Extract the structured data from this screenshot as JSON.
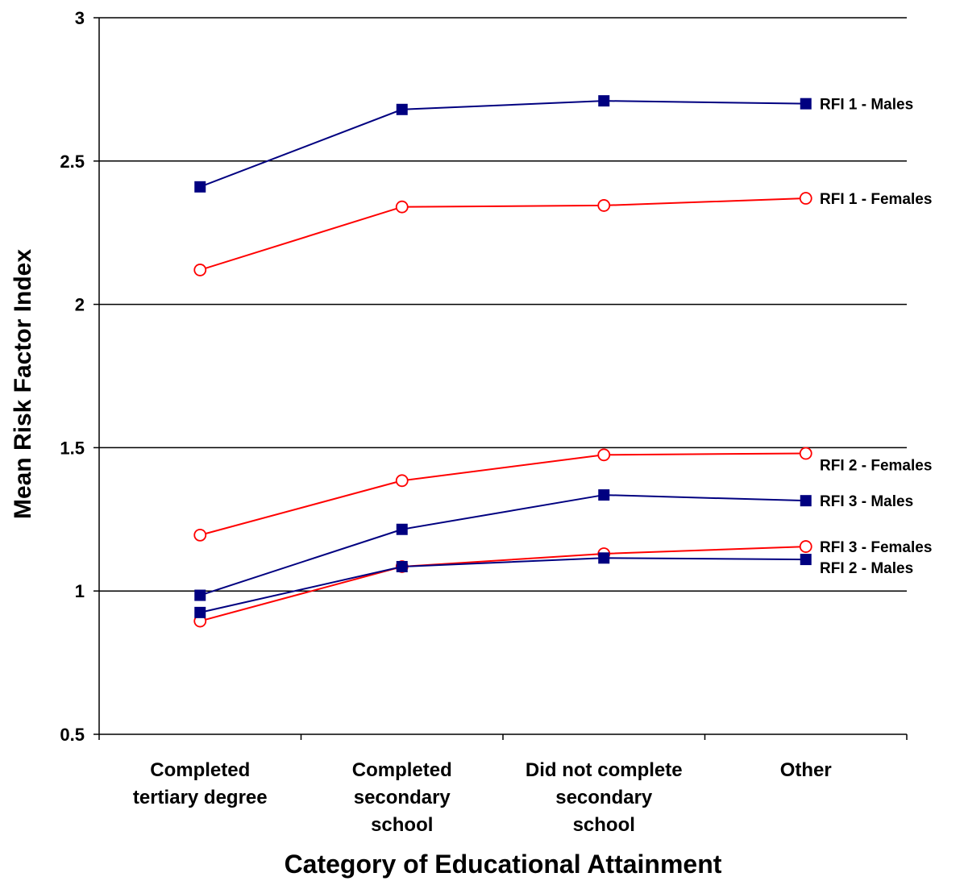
{
  "chart_data": {
    "type": "line",
    "title": "",
    "xlabel": "Category of Educational Attainment",
    "ylabel": "Mean Risk Factor Index",
    "ylim": [
      0.5,
      3
    ],
    "yticks": [
      "0.5",
      "1",
      "1.5",
      "2",
      "2.5",
      "3"
    ],
    "ytick_values": [
      0.5,
      1,
      1.5,
      2,
      2.5,
      3
    ],
    "grid": true,
    "categories": [
      [
        "Completed",
        "tertiary degree"
      ],
      [
        "Completed",
        "secondary",
        "school"
      ],
      [
        "Did not complete",
        "secondary",
        "school"
      ],
      [
        "Other"
      ]
    ],
    "series": [
      {
        "name": "RFI 1 - Males",
        "marker": "square",
        "color": "#000080",
        "values": [
          2.41,
          2.68,
          2.71,
          2.7
        ]
      },
      {
        "name": "RFI 1 - Females",
        "marker": "circle",
        "color": "#ff0000",
        "values": [
          2.12,
          2.34,
          2.345,
          2.37
        ]
      },
      {
        "name": "RFI 2 - Females",
        "marker": "circle",
        "color": "#ff0000",
        "values": [
          1.195,
          1.385,
          1.475,
          1.48
        ]
      },
      {
        "name": "RFI 3 - Males",
        "marker": "square",
        "color": "#000080",
        "values": [
          0.985,
          1.215,
          1.335,
          1.315
        ]
      },
      {
        "name": "RFI 3 - Females",
        "marker": "circle",
        "color": "#ff0000",
        "values": [
          0.895,
          1.085,
          1.13,
          1.155
        ]
      },
      {
        "name": "RFI 2 - Males",
        "marker": "square",
        "color": "#000080",
        "values": [
          0.925,
          1.085,
          1.115,
          1.11
        ]
      }
    ]
  }
}
